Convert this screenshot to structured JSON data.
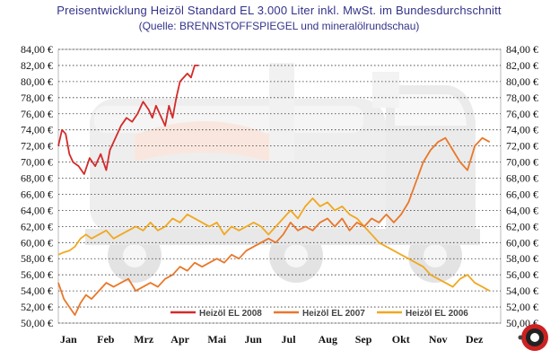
{
  "chart_data": {
    "type": "line",
    "title": "Preisentwicklung Heizöl Standard EL 3.000 Liter inkl. MwSt. im Bundesdurchschnitt",
    "subtitle": "(Quelle: BRENNSTOFFSPIEGEL und mineralölrundschau)",
    "xlabel": "",
    "ylabel": "",
    "categories": [
      "Jan",
      "Feb",
      "Mrz",
      "Apr",
      "Mai",
      "Jun",
      "Jul",
      "Aug",
      "Sep",
      "Okt",
      "Nov",
      "Dez"
    ],
    "y_tick_labels": [
      "50,00 €",
      "52,00 €",
      "54,00 €",
      "56,00 €",
      "58,00 €",
      "60,00 €",
      "62,00 €",
      "64,00 €",
      "66,00 €",
      "68,00 €",
      "70,00 €",
      "72,00 €",
      "74,00 €",
      "76,00 €",
      "78,00 €",
      "80,00 €",
      "82,00 €",
      "84,00 €"
    ],
    "ylim": [
      50,
      84
    ],
    "xlim": [
      0,
      12
    ],
    "grid": true,
    "legend_position": "bottom",
    "series": [
      {
        "name": "Heizöl EL 2008",
        "color": "#d42a2a",
        "x": [
          0.0,
          0.1,
          0.2,
          0.3,
          0.4,
          0.55,
          0.7,
          0.85,
          1.0,
          1.15,
          1.3,
          1.4,
          1.55,
          1.7,
          1.85,
          2.0,
          2.15,
          2.3,
          2.45,
          2.55,
          2.65,
          2.8,
          2.9,
          3.0,
          3.1,
          3.2,
          3.3,
          3.4,
          3.5,
          3.6,
          3.7,
          3.8
        ],
        "y": [
          72.0,
          74.0,
          73.5,
          71.0,
          70.0,
          69.5,
          68.5,
          70.5,
          69.5,
          71.0,
          69.0,
          71.5,
          73.0,
          74.5,
          75.5,
          75.0,
          76.0,
          77.5,
          76.5,
          75.5,
          77.0,
          75.5,
          74.5,
          77.0,
          75.5,
          78.0,
          80.0,
          80.5,
          81.0,
          80.5,
          82.0,
          82.0
        ]
      },
      {
        "name": "Heizöl EL 2007",
        "color": "#e8782a",
        "x": [
          0.0,
          0.15,
          0.3,
          0.45,
          0.6,
          0.75,
          0.9,
          1.1,
          1.3,
          1.5,
          1.7,
          1.9,
          2.1,
          2.3,
          2.5,
          2.7,
          2.9,
          3.1,
          3.3,
          3.5,
          3.7,
          3.9,
          4.1,
          4.3,
          4.5,
          4.7,
          4.9,
          5.1,
          5.3,
          5.5,
          5.7,
          5.9,
          6.1,
          6.3,
          6.5,
          6.7,
          6.9,
          7.1,
          7.3,
          7.5,
          7.7,
          7.9,
          8.1,
          8.3,
          8.5,
          8.7,
          8.9,
          9.1,
          9.3,
          9.5,
          9.7,
          9.9,
          10.1,
          10.3,
          10.5,
          10.7,
          10.9,
          11.1,
          11.3,
          11.5,
          11.7
        ],
        "y": [
          55.0,
          53.0,
          52.0,
          51.0,
          52.5,
          53.5,
          53.0,
          54.0,
          55.0,
          54.5,
          55.0,
          55.5,
          54.0,
          54.5,
          55.0,
          54.5,
          55.5,
          56.0,
          57.0,
          56.5,
          57.5,
          57.0,
          57.5,
          58.0,
          57.5,
          58.5,
          58.0,
          59.0,
          59.5,
          60.0,
          60.5,
          60.0,
          61.0,
          62.5,
          61.5,
          62.0,
          61.5,
          62.5,
          63.0,
          62.0,
          63.0,
          61.5,
          62.5,
          62.0,
          63.0,
          62.5,
          63.5,
          62.5,
          63.5,
          65.0,
          67.5,
          70.0,
          71.5,
          72.5,
          73.0,
          71.5,
          70.0,
          69.0,
          72.0,
          73.0,
          72.5
        ]
      },
      {
        "name": "Heizöl EL 2006",
        "color": "#f0a820",
        "x": [
          0.0,
          0.15,
          0.3,
          0.45,
          0.6,
          0.75,
          0.9,
          1.1,
          1.3,
          1.5,
          1.7,
          1.9,
          2.1,
          2.3,
          2.5,
          2.7,
          2.9,
          3.1,
          3.3,
          3.5,
          3.7,
          3.9,
          4.1,
          4.3,
          4.5,
          4.7,
          4.9,
          5.1,
          5.3,
          5.5,
          5.7,
          5.9,
          6.1,
          6.3,
          6.5,
          6.7,
          6.9,
          7.1,
          7.3,
          7.5,
          7.7,
          7.9,
          8.1,
          8.3,
          8.5,
          8.7,
          8.9,
          9.1,
          9.3,
          9.5,
          9.7,
          9.9,
          10.1,
          10.3,
          10.5,
          10.7,
          10.9,
          11.1,
          11.3,
          11.5,
          11.7
        ],
        "y": [
          58.5,
          58.8,
          59.0,
          59.5,
          60.5,
          61.0,
          60.5,
          61.0,
          61.5,
          60.5,
          61.0,
          61.5,
          62.0,
          61.5,
          62.5,
          61.5,
          62.0,
          63.0,
          62.5,
          63.5,
          63.0,
          62.5,
          62.0,
          62.5,
          61.0,
          62.0,
          61.5,
          62.0,
          62.5,
          62.0,
          61.0,
          62.0,
          63.0,
          64.0,
          63.0,
          64.5,
          65.5,
          64.5,
          65.0,
          64.0,
          64.5,
          63.5,
          63.0,
          62.0,
          61.0,
          60.0,
          59.5,
          59.0,
          58.5,
          58.0,
          57.5,
          57.0,
          56.0,
          55.5,
          55.0,
          54.5,
          55.5,
          56.0,
          55.0,
          54.5,
          54.0
        ]
      }
    ]
  }
}
